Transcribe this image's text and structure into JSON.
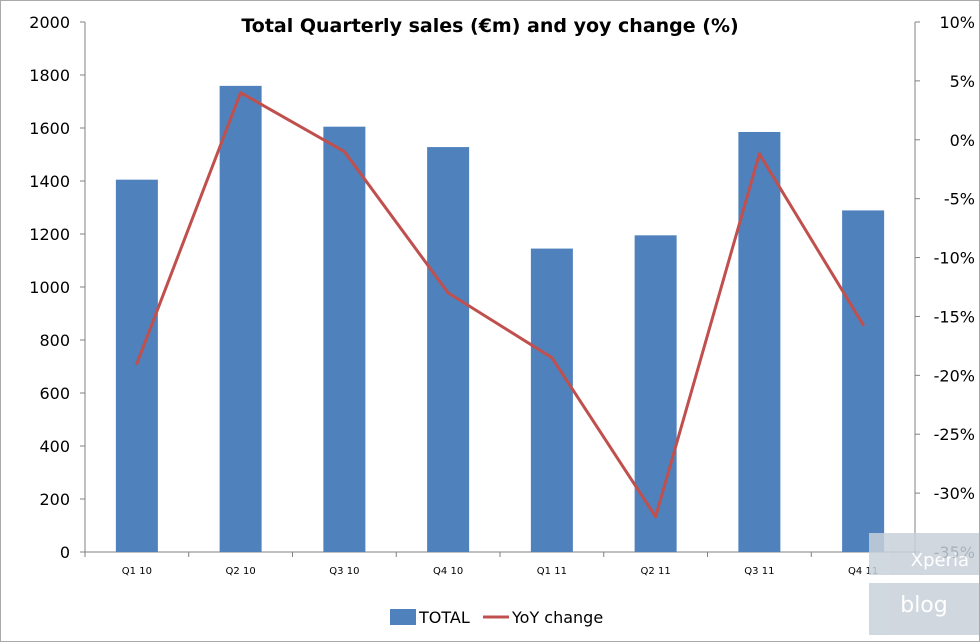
{
  "chart_data": {
    "type": "bar",
    "title": "Total Quarterly sales (€m) and yoy change (%)",
    "categories": [
      "Q1 10",
      "Q2 10",
      "Q3 10",
      "Q4 10",
      "Q1 11",
      "Q2 11",
      "Q3 11",
      "Q4 11"
    ],
    "series": [
      {
        "name": "TOTAL",
        "type": "bar",
        "axis": "left",
        "color": "#4f81bd",
        "values": [
          1405,
          1759,
          1605,
          1528,
          1145,
          1195,
          1585,
          1289
        ]
      },
      {
        "name": "YoY change",
        "type": "line",
        "axis": "right",
        "color": "#c0504d",
        "values": [
          -19.0,
          4.0,
          -1.0,
          -13.0,
          -18.5,
          -32.0,
          -1.2,
          -15.7
        ]
      }
    ],
    "ylim_left": [
      0,
      2000
    ],
    "yticks_left": [
      "0",
      "200",
      "400",
      "600",
      "800",
      "1000",
      "1200",
      "1400",
      "1600",
      "1800",
      "2000"
    ],
    "ylim_right": [
      -35,
      10
    ],
    "yticks_right": [
      "-35%",
      "-30%",
      "-25%",
      "-20%",
      "-15%",
      "-10%",
      "-5%",
      "0%",
      "5%",
      "10%"
    ],
    "grid": false,
    "legend_position": "bottom"
  },
  "watermark": {
    "line1": "Xperia",
    "line2": "blog"
  }
}
